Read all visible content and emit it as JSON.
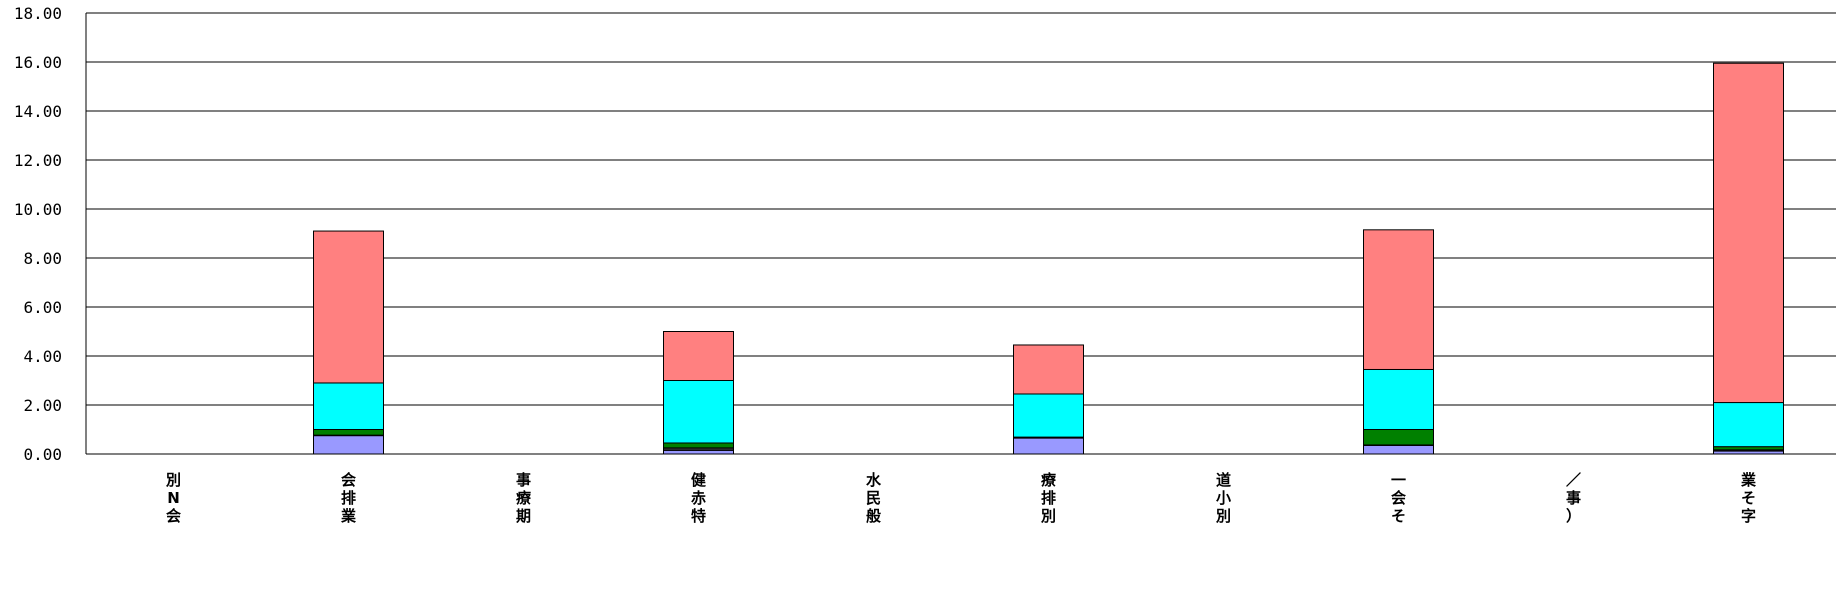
{
  "chart_data": {
    "type": "bar",
    "stacked": true,
    "categories": [
      [
        "別",
        "N",
        "会"
      ],
      [
        "会",
        "排",
        "業"
      ],
      [
        "事",
        "療",
        "期"
      ],
      [
        "健",
        "赤",
        "特"
      ],
      [
        "水",
        "民",
        "般"
      ],
      [
        "療",
        "排",
        "別"
      ],
      [
        "道",
        "小",
        "別"
      ],
      [
        "一",
        "会",
        "そ"
      ],
      [
        "／",
        "事",
        "）"
      ],
      [
        "業",
        "そ",
        "字"
      ]
    ],
    "series": [
      {
        "color": "#9999ff",
        "values": [
          0,
          0.75,
          0,
          0.15,
          0,
          0.65,
          0,
          0.35,
          0,
          0.12
        ]
      },
      {
        "color": "#333333",
        "values": [
          0,
          0.02,
          0,
          0.1,
          0,
          0.02,
          0,
          0.02,
          0,
          0.05
        ]
      },
      {
        "color": "#008000",
        "values": [
          0,
          0.23,
          0,
          0.2,
          0,
          0.02,
          0,
          0.63,
          0,
          0.13
        ]
      },
      {
        "color": "#00ffff",
        "values": [
          0,
          1.9,
          0,
          2.55,
          0,
          1.76,
          0,
          2.45,
          0,
          1.8
        ]
      },
      {
        "color": "#ff8080",
        "values": [
          0,
          6.2,
          0,
          2.0,
          0,
          2.0,
          0,
          5.7,
          0,
          13.85
        ]
      }
    ],
    "yticks": [
      "0.00",
      "2.00",
      "4.00",
      "6.00",
      "8.00",
      "10.00",
      "12.00",
      "14.00",
      "16.00",
      "18.00"
    ],
    "ylim": [
      0,
      18
    ],
    "grid": true,
    "legend": "none"
  }
}
